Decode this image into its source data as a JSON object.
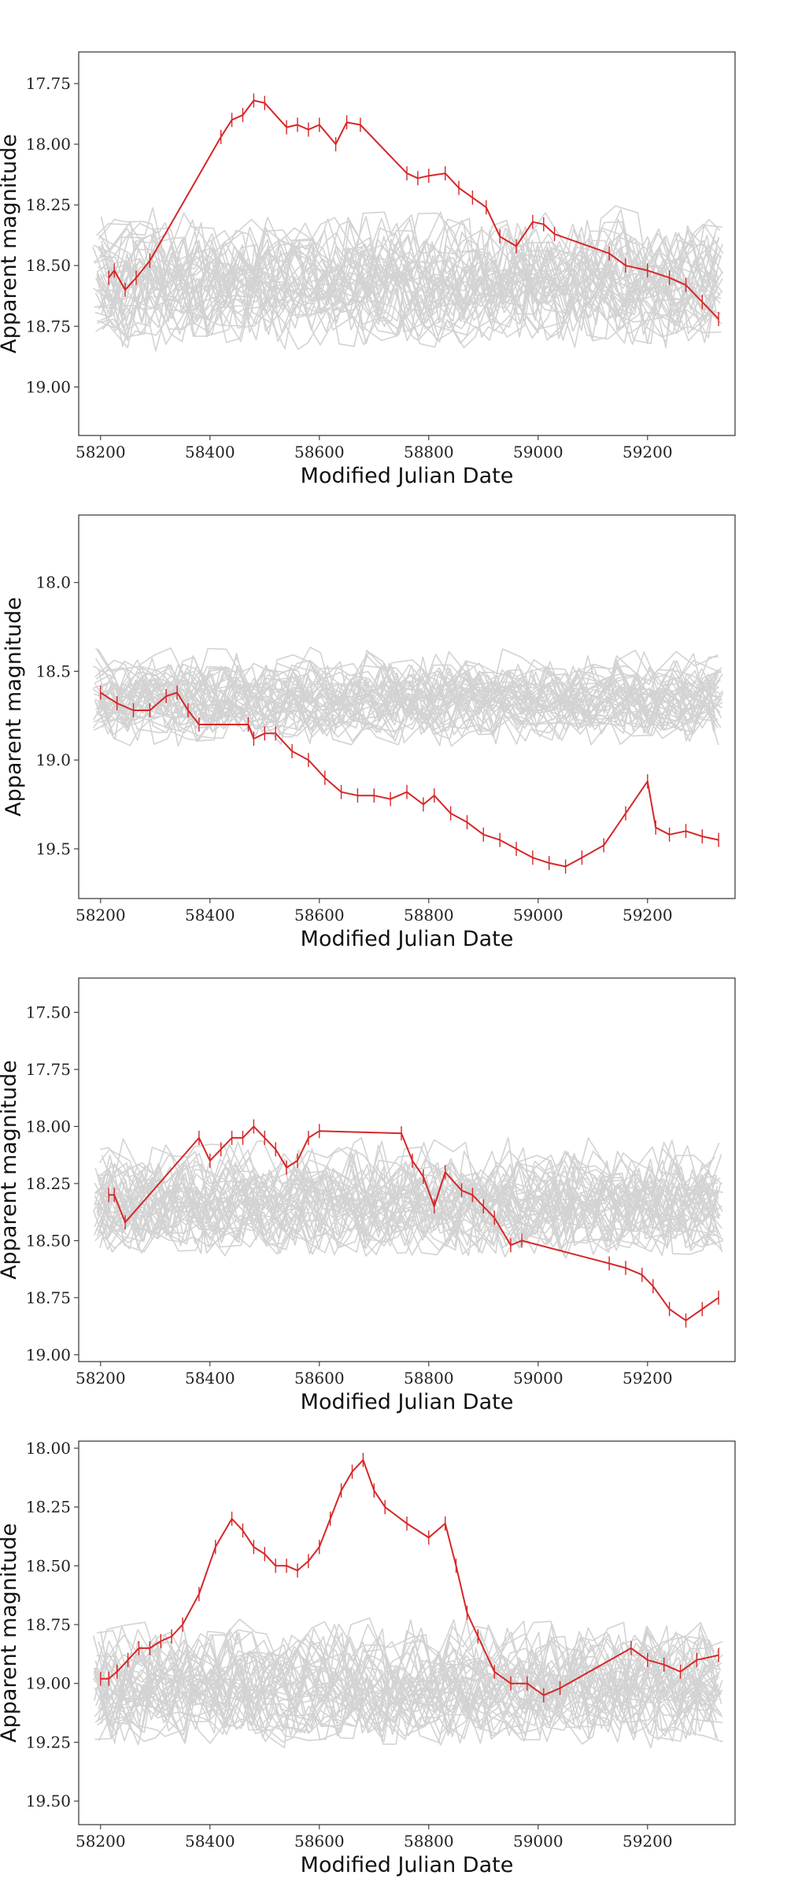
{
  "colors": {
    "background_curve": "#d3d3d3",
    "highlight_curve": "#d62728",
    "axes": "#333333"
  },
  "chart_data": [
    {
      "type": "line",
      "title": "",
      "xlabel": "Modified Julian Date",
      "ylabel": "Apparent magnitude",
      "xlim": [
        58160,
        59360
      ],
      "ylim": [
        19.2,
        17.62
      ],
      "y_inverted": true,
      "xticks": [
        58200,
        58400,
        58600,
        58800,
        59000,
        59200
      ],
      "xtick_labels": [
        "58200",
        "58400",
        "58600",
        "58800",
        "59000",
        "59200"
      ],
      "yticks": [
        17.75,
        18.0,
        18.25,
        18.5,
        18.75,
        19.0
      ],
      "ytick_labels": [
        "17.75",
        "18.00",
        "18.25",
        "18.50",
        "18.75",
        "19.00"
      ],
      "grid": false,
      "legend": "none",
      "background_curves": {
        "count": 40,
        "x_range": [
          58195,
          59330
        ],
        "center": 18.55,
        "spread": 0.16
      },
      "highlighted_series": {
        "color": "#d62728",
        "x": [
          58215,
          58225,
          58245,
          58265,
          58290,
          58420,
          58440,
          58460,
          58480,
          58500,
          58540,
          58560,
          58580,
          58600,
          58630,
          58650,
          58675,
          58760,
          58780,
          58800,
          58830,
          58855,
          58880,
          58905,
          58930,
          58960,
          58990,
          59010,
          59030,
          59130,
          59160,
          59200,
          59240,
          59270,
          59300,
          59330
        ],
        "y": [
          18.55,
          18.52,
          18.6,
          18.55,
          18.48,
          17.97,
          17.9,
          17.88,
          17.82,
          17.83,
          17.93,
          17.92,
          17.94,
          17.92,
          18.0,
          17.91,
          17.92,
          18.12,
          18.14,
          18.13,
          18.12,
          18.18,
          18.22,
          18.26,
          18.38,
          18.42,
          18.32,
          18.33,
          18.37,
          18.45,
          18.5,
          18.52,
          18.55,
          18.58,
          18.65,
          18.72
        ]
      }
    },
    {
      "type": "line",
      "title": "",
      "xlabel": "Modified Julian Date",
      "ylabel": "Apparent magnitude",
      "xlim": [
        58160,
        59360
      ],
      "ylim": [
        19.78,
        17.62
      ],
      "y_inverted": true,
      "xticks": [
        58200,
        58400,
        58600,
        58800,
        59000,
        59200
      ],
      "xtick_labels": [
        "58200",
        "58400",
        "58600",
        "58800",
        "59000",
        "59200"
      ],
      "yticks": [
        18.0,
        18.5,
        19.0,
        19.5
      ],
      "ytick_labels": [
        "18.0",
        "18.5",
        "19.0",
        "19.5"
      ],
      "grid": false,
      "legend": "none",
      "background_curves": {
        "count": 40,
        "x_range": [
          58195,
          59330
        ],
        "center": 18.65,
        "spread": 0.15
      },
      "highlighted_series": {
        "color": "#d62728",
        "x": [
          58200,
          58230,
          58260,
          58290,
          58320,
          58340,
          58360,
          58380,
          58470,
          58480,
          58500,
          58520,
          58550,
          58580,
          58610,
          58640,
          58670,
          58700,
          58730,
          58760,
          58790,
          58810,
          58840,
          58870,
          58900,
          58930,
          58960,
          58990,
          59020,
          59050,
          59080,
          59120,
          59160,
          59200,
          59215,
          59240,
          59270,
          59300,
          59330
        ],
        "y": [
          18.62,
          18.68,
          18.72,
          18.72,
          18.64,
          18.62,
          18.72,
          18.8,
          18.8,
          18.88,
          18.85,
          18.85,
          18.95,
          19.0,
          19.1,
          19.18,
          19.2,
          19.2,
          19.22,
          19.18,
          19.25,
          19.2,
          19.3,
          19.35,
          19.42,
          19.45,
          19.5,
          19.55,
          19.58,
          19.6,
          19.55,
          19.48,
          19.3,
          19.12,
          19.38,
          19.42,
          19.4,
          19.43,
          19.45
        ]
      }
    },
    {
      "type": "line",
      "title": "",
      "xlabel": "Modified Julian Date",
      "ylabel": "Apparent magnitude",
      "xlim": [
        58160,
        59360
      ],
      "ylim": [
        19.03,
        17.35
      ],
      "y_inverted": true,
      "xticks": [
        58200,
        58400,
        58600,
        58800,
        59000,
        59200
      ],
      "xtick_labels": [
        "58200",
        "58400",
        "58600",
        "58800",
        "59000",
        "59200"
      ],
      "yticks": [
        17.5,
        17.75,
        18.0,
        18.25,
        18.5,
        18.75,
        19.0
      ],
      "ytick_labels": [
        "17.50",
        "17.75",
        "18.00",
        "18.25",
        "18.50",
        "18.75",
        "19.00"
      ],
      "grid": false,
      "legend": "none",
      "background_curves": {
        "count": 40,
        "x_range": [
          58195,
          59330
        ],
        "center": 18.33,
        "spread": 0.15
      },
      "highlighted_series": {
        "color": "#d62728",
        "x": [
          58215,
          58225,
          58245,
          58380,
          58400,
          58420,
          58440,
          58460,
          58480,
          58500,
          58520,
          58540,
          58560,
          58580,
          58600,
          58750,
          58770,
          58790,
          58810,
          58830,
          58860,
          58880,
          58900,
          58920,
          58950,
          58970,
          59130,
          59160,
          59190,
          59210,
          59240,
          59270,
          59300,
          59330
        ],
        "y": [
          18.3,
          18.3,
          18.42,
          18.05,
          18.15,
          18.1,
          18.05,
          18.05,
          18.0,
          18.05,
          18.1,
          18.18,
          18.15,
          18.05,
          18.02,
          18.03,
          18.15,
          18.22,
          18.35,
          18.2,
          18.28,
          18.3,
          18.35,
          18.4,
          18.52,
          18.5,
          18.6,
          18.62,
          18.65,
          18.7,
          18.8,
          18.85,
          18.8,
          18.75
        ]
      }
    },
    {
      "type": "line",
      "title": "",
      "xlabel": "Modified Julian Date",
      "ylabel": "Apparent magnitude",
      "xlim": [
        58160,
        59360
      ],
      "ylim": [
        19.6,
        17.97
      ],
      "y_inverted": true,
      "xticks": [
        58200,
        58400,
        58600,
        58800,
        59000,
        59200
      ],
      "xtick_labels": [
        "58200",
        "58400",
        "58600",
        "58800",
        "59000",
        "59200"
      ],
      "yticks": [
        18.0,
        18.25,
        18.5,
        18.75,
        19.0,
        19.25,
        19.5
      ],
      "ytick_labels": [
        "18.00",
        "18.25",
        "18.50",
        "18.75",
        "19.00",
        "19.25",
        "19.50"
      ],
      "grid": false,
      "legend": "none",
      "background_curves": {
        "count": 40,
        "x_range": [
          58195,
          59330
        ],
        "center": 19.0,
        "spread": 0.15
      },
      "highlighted_series": {
        "color": "#d62728",
        "x": [
          58200,
          58215,
          58230,
          58250,
          58270,
          58290,
          58310,
          58330,
          58350,
          58380,
          58410,
          58440,
          58460,
          58480,
          58500,
          58520,
          58540,
          58560,
          58580,
          58600,
          58620,
          58640,
          58660,
          58680,
          58700,
          58720,
          58760,
          58800,
          58830,
          58850,
          58870,
          58890,
          58920,
          58950,
          58980,
          59010,
          59040,
          59170,
          59200,
          59230,
          59260,
          59290,
          59330
        ],
        "y": [
          18.98,
          18.98,
          18.95,
          18.9,
          18.85,
          18.85,
          18.82,
          18.8,
          18.75,
          18.62,
          18.42,
          18.3,
          18.35,
          18.42,
          18.45,
          18.5,
          18.5,
          18.52,
          18.48,
          18.42,
          18.3,
          18.18,
          18.1,
          18.05,
          18.18,
          18.25,
          18.32,
          18.38,
          18.32,
          18.5,
          18.7,
          18.8,
          18.95,
          19.0,
          19.0,
          19.05,
          19.02,
          18.85,
          18.9,
          18.92,
          18.95,
          18.9,
          18.88
        ]
      }
    }
  ]
}
